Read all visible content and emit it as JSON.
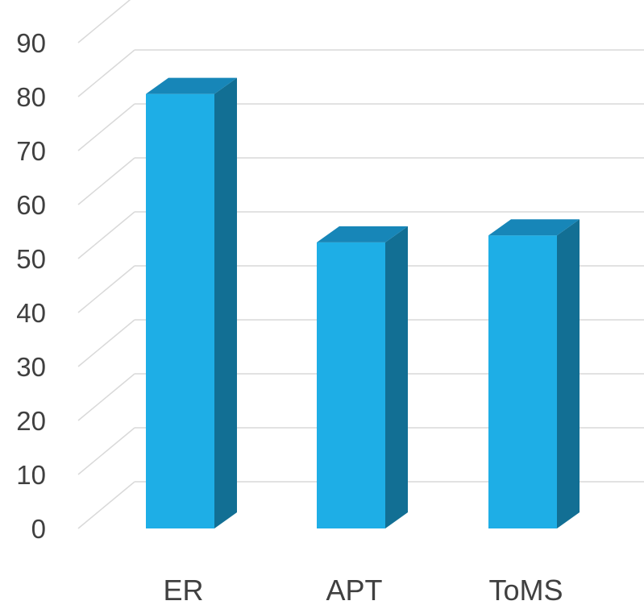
{
  "chart_data": {
    "type": "bar",
    "style": "3d-column",
    "title": "",
    "xlabel": "",
    "ylabel": "",
    "categories": [
      "ER",
      "APT",
      "ToMS"
    ],
    "series": [
      {
        "values": [
          80.5,
          53,
          54.3
        ]
      }
    ],
    "ylim": [
      0,
      90
    ],
    "yticks": [
      0,
      10,
      20,
      30,
      40,
      50,
      60,
      70,
      80,
      90
    ],
    "grid": true,
    "legend": "none",
    "colors": {
      "bar_front": "#1EAEE6",
      "bar_top": "#1786B8",
      "bar_side": "#126F94",
      "grid": "#D9D9D9",
      "text": "#404040"
    }
  }
}
